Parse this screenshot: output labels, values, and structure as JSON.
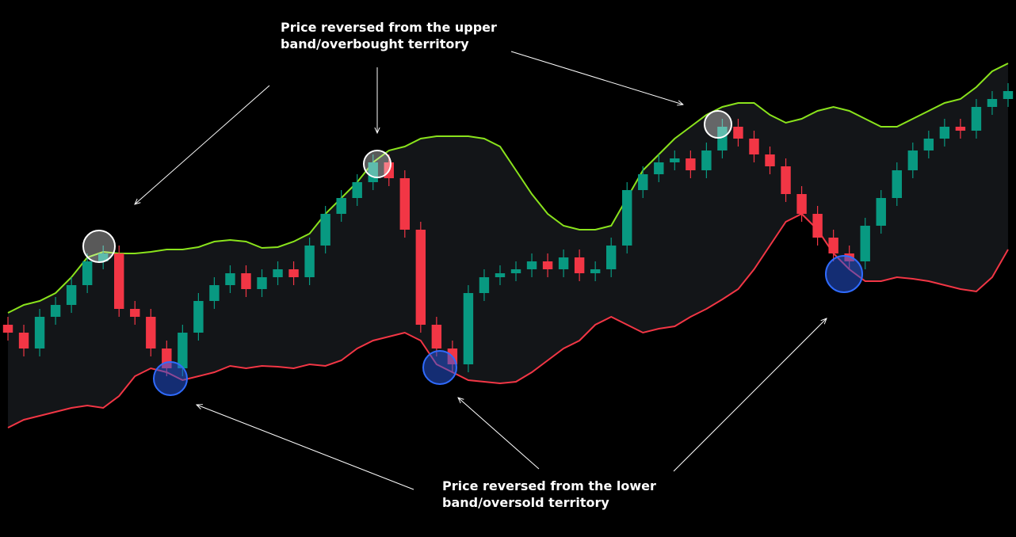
{
  "chart_data": {
    "type": "candlestick",
    "ylim": [
      0,
      678
    ],
    "up_color": "#089981",
    "down_color": "#f23645",
    "band_fill": "#131518",
    "open": [
      268,
      258,
      238,
      278,
      293,
      318,
      348,
      358,
      288,
      278,
      238,
      213,
      258,
      298,
      318,
      333,
      313,
      328,
      338,
      328,
      368,
      408,
      428,
      448,
      473,
      453,
      388,
      268,
      238,
      218,
      308,
      328,
      333,
      338,
      348,
      338,
      353,
      333,
      338,
      368,
      438,
      458,
      473,
      478,
      463,
      488,
      518,
      503,
      483,
      468,
      433,
      408,
      378,
      358,
      348,
      393,
      428,
      463,
      488,
      503,
      518,
      513,
      543,
      553
    ],
    "high": [
      278,
      268,
      288,
      303,
      328,
      358,
      368,
      368,
      298,
      288,
      248,
      268,
      308,
      328,
      343,
      343,
      338,
      348,
      348,
      378,
      418,
      438,
      458,
      483,
      483,
      463,
      398,
      278,
      248,
      318,
      338,
      343,
      348,
      358,
      358,
      363,
      363,
      348,
      378,
      448,
      468,
      483,
      488,
      488,
      498,
      528,
      528,
      513,
      493,
      478,
      443,
      418,
      388,
      368,
      403,
      438,
      473,
      498,
      513,
      528,
      528,
      553,
      563,
      573
    ],
    "low": [
      248,
      228,
      228,
      268,
      283,
      308,
      338,
      278,
      268,
      228,
      203,
      203,
      248,
      288,
      308,
      303,
      303,
      318,
      318,
      318,
      358,
      398,
      418,
      438,
      443,
      378,
      258,
      228,
      208,
      208,
      298,
      318,
      323,
      328,
      328,
      328,
      323,
      323,
      328,
      358,
      428,
      448,
      463,
      453,
      453,
      478,
      493,
      473,
      458,
      423,
      398,
      368,
      348,
      338,
      338,
      383,
      418,
      453,
      478,
      493,
      503,
      503,
      533,
      543
    ],
    "close": [
      258,
      238,
      278,
      293,
      318,
      348,
      358,
      288,
      278,
      238,
      213,
      258,
      298,
      318,
      333,
      313,
      328,
      338,
      328,
      368,
      408,
      428,
      448,
      473,
      453,
      388,
      268,
      238,
      218,
      308,
      328,
      333,
      338,
      348,
      338,
      353,
      333,
      338,
      368,
      438,
      458,
      473,
      478,
      463,
      488,
      518,
      503,
      483,
      468,
      433,
      408,
      378,
      358,
      348,
      393,
      428,
      463,
      488,
      503,
      518,
      513,
      543,
      553,
      563
    ],
    "upper_band": {
      "color": "#8ae31c",
      "values": [
        283,
        293,
        298,
        308,
        328,
        353,
        360,
        358,
        358,
        360,
        363,
        363,
        366,
        373,
        375,
        373,
        365,
        366,
        373,
        383,
        408,
        428,
        448,
        473,
        488,
        493,
        503,
        506,
        506,
        506,
        503,
        493,
        463,
        433,
        408,
        393,
        388,
        388,
        393,
        428,
        463,
        483,
        503,
        518,
        533,
        543,
        548,
        548,
        533,
        523,
        528,
        538,
        543,
        538,
        528,
        518,
        518,
        528,
        538,
        548,
        553,
        568,
        588,
        598
      ]
    },
    "lower_band": {
      "color": "#f23645",
      "values": [
        138,
        148,
        153,
        158,
        163,
        166,
        163,
        178,
        203,
        213,
        208,
        198,
        203,
        208,
        216,
        213,
        216,
        215,
        213,
        218,
        216,
        223,
        238,
        248,
        253,
        258,
        248,
        218,
        208,
        198,
        196,
        194,
        196,
        208,
        223,
        238,
        248,
        268,
        278,
        268,
        258,
        263,
        266,
        278,
        288,
        300,
        313,
        338,
        368,
        398,
        408,
        388,
        358,
        338,
        323,
        323,
        328,
        326,
        323,
        318,
        313,
        310,
        328,
        363
      ]
    },
    "annotations": [
      {
        "lines": [
          "Price reversed from the upper",
          "band/overbought territory"
        ]
      },
      {
        "lines": [
          "Price reversed from the lower",
          "band/oversold territory"
        ]
      }
    ]
  }
}
